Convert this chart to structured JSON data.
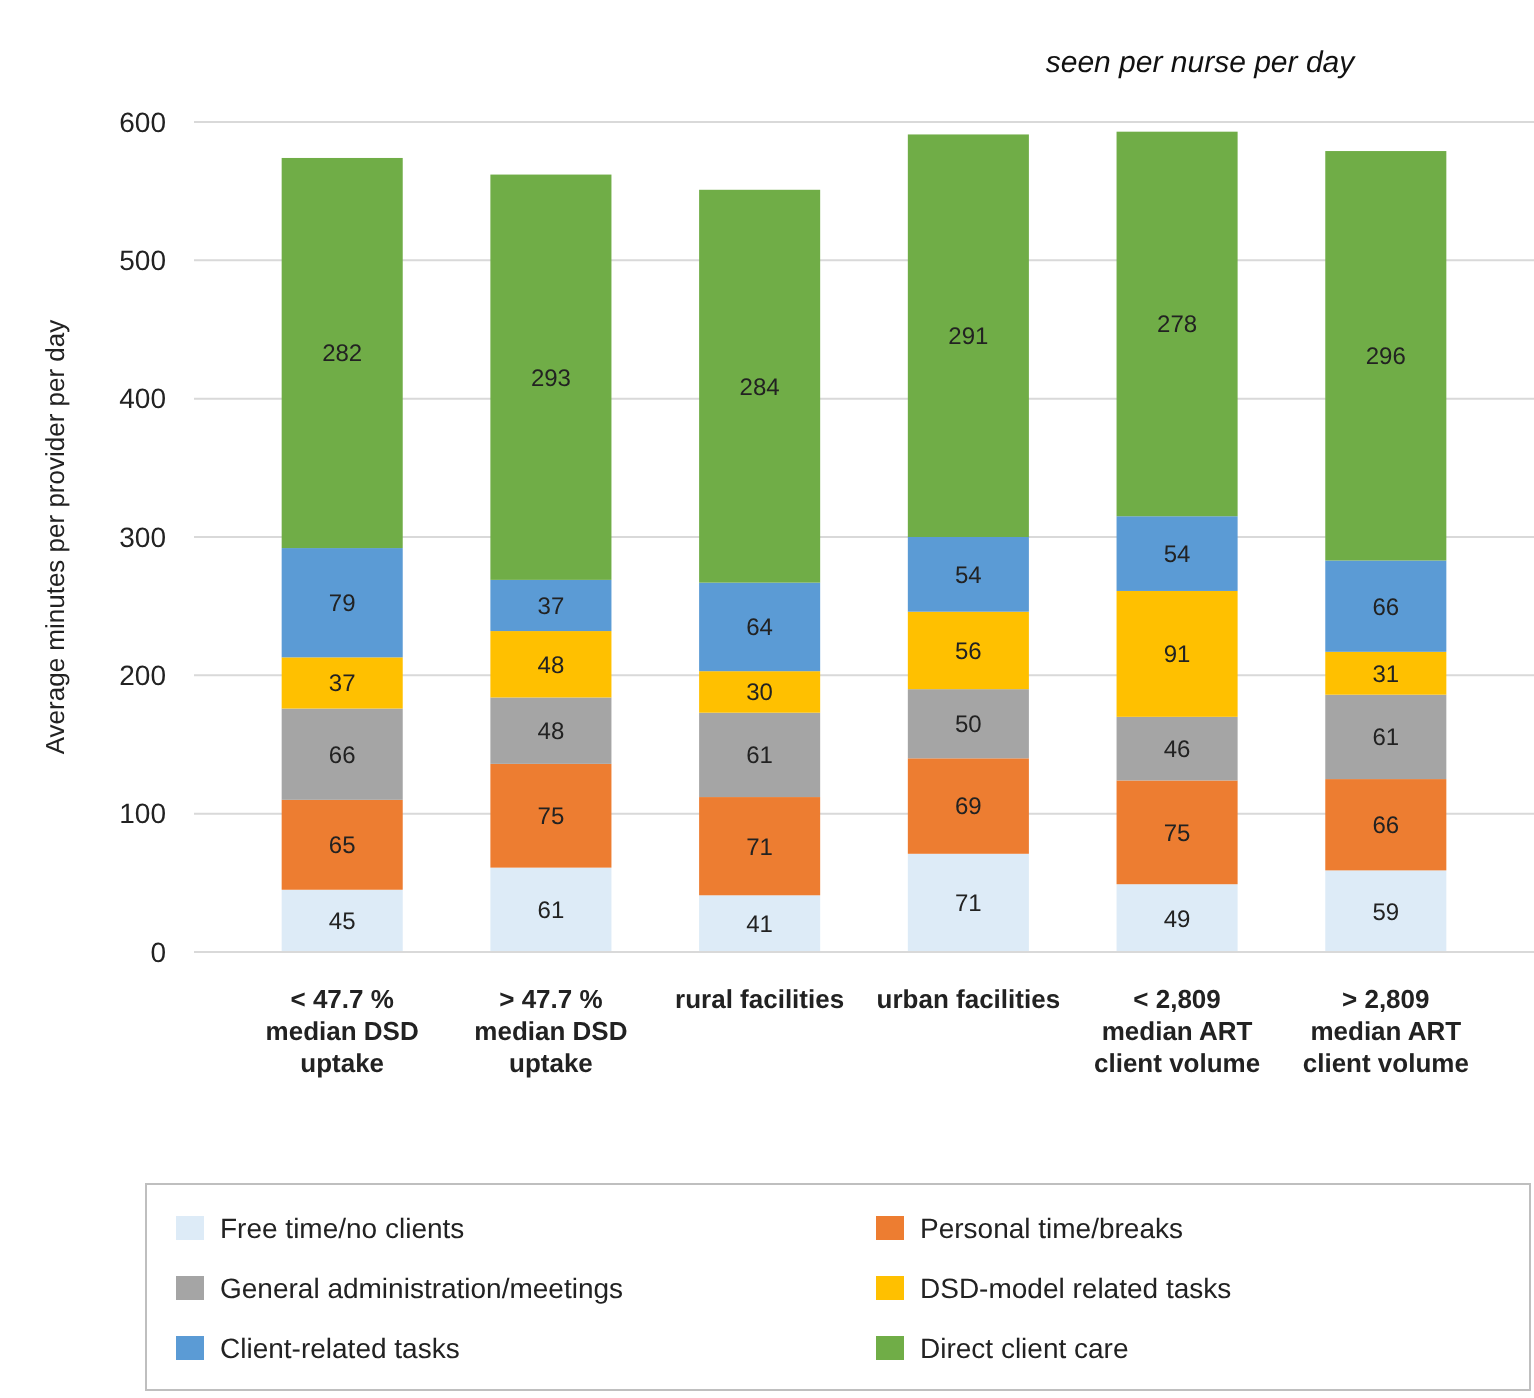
{
  "chart_data": {
    "type": "bar",
    "stacked": true,
    "data_labels": true,
    "grid": "y",
    "legend": "bottom",
    "ylabel": "Average minutes per provider per day",
    "annotations": [
      "seen per nurse per day"
    ],
    "categories": [
      "< 47.7 %\nmedian DSD\nuptake",
      "> 47.7 %\nmedian DSD\nuptake",
      "rural facilities",
      "urban facilities",
      "< 2,809\nmedian ART\nclient volume",
      "> 2,809\nmedian ART\nclient volume"
    ],
    "ylim": [
      0,
      600
    ],
    "yticks": [
      0,
      100,
      200,
      300,
      400,
      500,
      600
    ],
    "series": [
      {
        "name": "Free time/no clients",
        "color": "#ddebf7",
        "values": [
          45,
          61,
          41,
          71,
          49,
          59
        ]
      },
      {
        "name": "Personal time/breaks",
        "color": "#ed7d31",
        "values": [
          65,
          75,
          71,
          69,
          75,
          66
        ]
      },
      {
        "name": "General administration/meetings",
        "color": "#a5a5a5",
        "values": [
          66,
          48,
          61,
          50,
          46,
          61
        ]
      },
      {
        "name": "DSD-model related tasks",
        "color": "#ffc000",
        "values": [
          37,
          48,
          30,
          56,
          91,
          31
        ]
      },
      {
        "name": "Client-related tasks",
        "color": "#5b9bd5",
        "values": [
          79,
          37,
          64,
          54,
          54,
          66
        ]
      },
      {
        "name": "Direct client care",
        "color": "#70ad47",
        "values": [
          282,
          293,
          284,
          291,
          278,
          296
        ]
      }
    ]
  }
}
